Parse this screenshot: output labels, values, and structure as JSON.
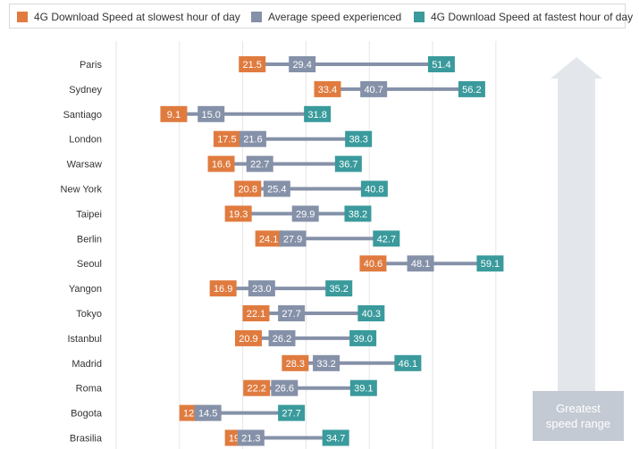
{
  "legend": {
    "slowest": "4G Download Speed at slowest hour of day",
    "average": "Average speed experienced",
    "fastest": "4G Download Speed at fastest hour of day"
  },
  "colors": {
    "slowest": "#e07b3f",
    "average": "#8591a8",
    "fastest": "#3a9a9c",
    "connector": "#8591a8",
    "grid": "#e6e6e6",
    "arrow": "#e3e7ec",
    "arrow_box": "#c4cad3"
  },
  "arrow_text": {
    "line1": "Greatest",
    "line2": "speed range"
  },
  "chart_data": {
    "type": "dot-range",
    "title": "",
    "xlabel": "",
    "ylabel": "",
    "xlim": [
      0,
      65
    ],
    "grid": true,
    "legend_position": "top",
    "categories": [
      "Paris",
      "Sydney",
      "Santiago",
      "London",
      "Warsaw",
      "New York",
      "Taipei",
      "Berlin",
      "Seoul",
      "Yangon",
      "Tokyo",
      "Istanbul",
      "Madrid",
      "Roma",
      "Bogota",
      "Brasilia"
    ],
    "series": [
      {
        "name": "4G Download Speed at slowest hour of day",
        "values": [
          21.5,
          33.4,
          9.1,
          17.5,
          16.6,
          20.8,
          19.3,
          24.1,
          40.6,
          16.9,
          22.1,
          20.9,
          28.3,
          22.2,
          12.1,
          19.3
        ]
      },
      {
        "name": "Average speed experienced",
        "values": [
          29.4,
          40.7,
          15.0,
          21.6,
          22.7,
          25.4,
          29.9,
          27.9,
          48.1,
          23.0,
          27.7,
          26.2,
          33.2,
          26.6,
          14.5,
          21.3
        ]
      },
      {
        "name": "4G Download Speed at fastest hour of day",
        "values": [
          51.4,
          56.2,
          31.8,
          38.3,
          36.7,
          40.8,
          38.2,
          42.7,
          59.1,
          35.2,
          40.3,
          39.0,
          46.1,
          39.1,
          27.7,
          34.7
        ]
      }
    ]
  }
}
